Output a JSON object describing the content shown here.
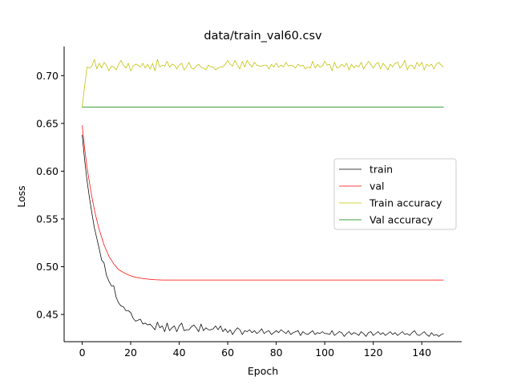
{
  "chart_data": {
    "type": "line",
    "title": "data/train_val60.csv",
    "xlabel": "Epoch",
    "ylabel": "Loss",
    "xlim": [
      -7.45,
      156.45
    ],
    "ylim": [
      0.4215,
      0.7305
    ],
    "xticks": [
      0,
      20,
      40,
      60,
      80,
      100,
      120,
      140
    ],
    "yticks": [
      0.45,
      0.5,
      0.55,
      0.6,
      0.65,
      0.7
    ],
    "xtick_labels": [
      "0",
      "20",
      "40",
      "60",
      "80",
      "100",
      "120",
      "140"
    ],
    "ytick_labels": [
      "0.45",
      "0.50",
      "0.55",
      "0.60",
      "0.65",
      "0.70"
    ],
    "grid": false,
    "spines": [
      "left",
      "bottom"
    ],
    "legend_position": "center-right",
    "x": [
      0,
      1,
      2,
      3,
      4,
      5,
      6,
      7,
      8,
      9,
      10,
      11,
      12,
      13,
      14,
      15,
      16,
      17,
      18,
      19,
      20,
      21,
      22,
      23,
      24,
      25,
      26,
      27,
      28,
      29,
      30,
      31,
      32,
      33,
      34,
      35,
      36,
      37,
      38,
      39,
      40,
      41,
      42,
      43,
      44,
      45,
      46,
      47,
      48,
      49,
      50,
      51,
      52,
      53,
      54,
      55,
      56,
      57,
      58,
      59,
      60,
      61,
      62,
      63,
      64,
      65,
      66,
      67,
      68,
      69,
      70,
      71,
      72,
      73,
      74,
      75,
      76,
      77,
      78,
      79,
      80,
      81,
      82,
      83,
      84,
      85,
      86,
      87,
      88,
      89,
      90,
      91,
      92,
      93,
      94,
      95,
      96,
      97,
      98,
      99,
      100,
      101,
      102,
      103,
      104,
      105,
      106,
      107,
      108,
      109,
      110,
      111,
      112,
      113,
      114,
      115,
      116,
      117,
      118,
      119,
      120,
      121,
      122,
      123,
      124,
      125,
      126,
      127,
      128,
      129,
      130,
      131,
      132,
      133,
      134,
      135,
      136,
      137,
      138,
      139,
      140,
      141,
      142,
      143,
      144,
      145,
      146,
      147,
      148,
      149
    ],
    "series": [
      {
        "name": "train",
        "color": "#000000",
        "values": [
          0.638,
          0.612,
          0.59,
          0.572,
          0.556,
          0.541,
          0.53,
          0.519,
          0.507,
          0.504,
          0.491,
          0.485,
          0.48,
          0.48,
          0.468,
          0.462,
          0.459,
          0.458,
          0.454,
          0.454,
          0.452,
          0.446,
          0.443,
          0.444,
          0.445,
          0.44,
          0.441,
          0.439,
          0.44,
          0.437,
          0.434,
          0.442,
          0.436,
          0.438,
          0.432,
          0.441,
          0.433,
          0.436,
          0.438,
          0.432,
          0.438,
          0.441,
          0.433,
          0.434,
          0.434,
          0.437,
          0.439,
          0.436,
          0.432,
          0.44,
          0.433,
          0.436,
          0.434,
          0.434,
          0.435,
          0.438,
          0.434,
          0.438,
          0.432,
          0.435,
          0.431,
          0.434,
          0.429,
          0.433,
          0.436,
          0.434,
          0.429,
          0.433,
          0.432,
          0.434,
          0.431,
          0.433,
          0.43,
          0.432,
          0.435,
          0.43,
          0.432,
          0.433,
          0.429,
          0.431,
          0.433,
          0.431,
          0.434,
          0.432,
          0.43,
          0.433,
          0.429,
          0.431,
          0.432,
          0.433,
          0.428,
          0.432,
          0.43,
          0.429,
          0.431,
          0.433,
          0.429,
          0.431,
          0.43,
          0.432,
          0.43,
          0.43,
          0.429,
          0.433,
          0.428,
          0.43,
          0.432,
          0.431,
          0.427,
          0.43,
          0.432,
          0.429,
          0.431,
          0.43,
          0.428,
          0.432,
          0.43,
          0.427,
          0.431,
          0.432,
          0.428,
          0.43,
          0.432,
          0.429,
          0.431,
          0.428,
          0.43,
          0.432,
          0.429,
          0.431,
          0.428,
          0.43,
          0.432,
          0.429,
          0.43,
          0.428,
          0.431,
          0.433,
          0.429,
          0.428,
          0.43,
          0.432,
          0.429,
          0.427,
          0.431,
          0.428,
          0.429,
          0.427,
          0.429,
          0.43
        ]
      },
      {
        "name": "val",
        "color": "#ff0000",
        "values": [
          0.648,
          0.624,
          0.604,
          0.588,
          0.573,
          0.56,
          0.549,
          0.539,
          0.531,
          0.523,
          0.517,
          0.511,
          0.507,
          0.503,
          0.5,
          0.497,
          0.4955,
          0.494,
          0.4925,
          0.4915,
          0.4905,
          0.4897,
          0.489,
          0.4885,
          0.488,
          0.4876,
          0.4873,
          0.487,
          0.4868,
          0.4866,
          0.4864,
          0.4863,
          0.4862,
          0.4861,
          0.486,
          0.486,
          0.486,
          0.486,
          0.486,
          0.486,
          0.486,
          0.486,
          0.486,
          0.486,
          0.486,
          0.486,
          0.486,
          0.486,
          0.486,
          0.486,
          0.486,
          0.486,
          0.486,
          0.486,
          0.486,
          0.486,
          0.486,
          0.486,
          0.486,
          0.486,
          0.486,
          0.486,
          0.486,
          0.486,
          0.486,
          0.486,
          0.486,
          0.486,
          0.486,
          0.486,
          0.486,
          0.486,
          0.486,
          0.486,
          0.486,
          0.486,
          0.486,
          0.486,
          0.486,
          0.486,
          0.486,
          0.486,
          0.486,
          0.486,
          0.486,
          0.486,
          0.486,
          0.486,
          0.486,
          0.486,
          0.486,
          0.486,
          0.486,
          0.486,
          0.486,
          0.486,
          0.486,
          0.486,
          0.486,
          0.486,
          0.486,
          0.486,
          0.486,
          0.486,
          0.486,
          0.486,
          0.486,
          0.486,
          0.486,
          0.486,
          0.486,
          0.486,
          0.486,
          0.486,
          0.486,
          0.486,
          0.486,
          0.486,
          0.486,
          0.486,
          0.486,
          0.486,
          0.486,
          0.486,
          0.486,
          0.486,
          0.486,
          0.486,
          0.486,
          0.486,
          0.486,
          0.486,
          0.486,
          0.486,
          0.486,
          0.486,
          0.486,
          0.486,
          0.486,
          0.486,
          0.486,
          0.486,
          0.486,
          0.486,
          0.486,
          0.486,
          0.486,
          0.486,
          0.486,
          0.486
        ]
      },
      {
        "name": "Train accuracy",
        "color": "#bfbf00",
        "values": [
          0.667,
          0.689,
          0.709,
          0.708,
          0.71,
          0.717,
          0.707,
          0.713,
          0.708,
          0.714,
          0.711,
          0.705,
          0.71,
          0.709,
          0.706,
          0.712,
          0.716,
          0.711,
          0.708,
          0.713,
          0.705,
          0.71,
          0.712,
          0.711,
          0.709,
          0.713,
          0.708,
          0.712,
          0.707,
          0.713,
          0.705,
          0.717,
          0.709,
          0.711,
          0.71,
          0.715,
          0.709,
          0.712,
          0.711,
          0.707,
          0.711,
          0.713,
          0.706,
          0.709,
          0.714,
          0.708,
          0.707,
          0.71,
          0.712,
          0.709,
          0.708,
          0.706,
          0.711,
          0.709,
          0.709,
          0.706,
          0.708,
          0.709,
          0.709,
          0.712,
          0.716,
          0.712,
          0.71,
          0.716,
          0.711,
          0.707,
          0.715,
          0.709,
          0.716,
          0.712,
          0.709,
          0.714,
          0.711,
          0.71,
          0.71,
          0.711,
          0.711,
          0.707,
          0.712,
          0.709,
          0.713,
          0.709,
          0.711,
          0.709,
          0.714,
          0.71,
          0.711,
          0.71,
          0.708,
          0.712,
          0.71,
          0.711,
          0.707,
          0.709,
          0.708,
          0.715,
          0.708,
          0.712,
          0.709,
          0.71,
          0.715,
          0.711,
          0.712,
          0.705,
          0.714,
          0.708,
          0.709,
          0.712,
          0.709,
          0.713,
          0.706,
          0.712,
          0.708,
          0.711,
          0.709,
          0.714,
          0.707,
          0.711,
          0.715,
          0.712,
          0.708,
          0.712,
          0.714,
          0.707,
          0.713,
          0.71,
          0.706,
          0.712,
          0.709,
          0.713,
          0.714,
          0.708,
          0.711,
          0.716,
          0.706,
          0.711,
          0.711,
          0.707,
          0.714,
          0.71,
          0.714,
          0.706,
          0.712,
          0.71,
          0.712,
          0.707,
          0.712,
          0.714,
          0.711,
          0.709
        ]
      },
      {
        "name": "Val accuracy",
        "color": "#008000",
        "values": [
          0.667,
          0.667,
          0.667,
          0.667,
          0.667,
          0.667,
          0.667,
          0.667,
          0.667,
          0.667,
          0.667,
          0.667,
          0.667,
          0.667,
          0.667,
          0.667,
          0.667,
          0.667,
          0.667,
          0.667,
          0.667,
          0.667,
          0.667,
          0.667,
          0.667,
          0.667,
          0.667,
          0.667,
          0.667,
          0.667,
          0.667,
          0.667,
          0.667,
          0.667,
          0.667,
          0.667,
          0.667,
          0.667,
          0.667,
          0.667,
          0.667,
          0.667,
          0.667,
          0.667,
          0.667,
          0.667,
          0.667,
          0.667,
          0.667,
          0.667,
          0.667,
          0.667,
          0.667,
          0.667,
          0.667,
          0.667,
          0.667,
          0.667,
          0.667,
          0.667,
          0.667,
          0.667,
          0.667,
          0.667,
          0.667,
          0.667,
          0.667,
          0.667,
          0.667,
          0.667,
          0.667,
          0.667,
          0.667,
          0.667,
          0.667,
          0.667,
          0.667,
          0.667,
          0.667,
          0.667,
          0.667,
          0.667,
          0.667,
          0.667,
          0.667,
          0.667,
          0.667,
          0.667,
          0.667,
          0.667,
          0.667,
          0.667,
          0.667,
          0.667,
          0.667,
          0.667,
          0.667,
          0.667,
          0.667,
          0.667,
          0.667,
          0.667,
          0.667,
          0.667,
          0.667,
          0.667,
          0.667,
          0.667,
          0.667,
          0.667,
          0.667,
          0.667,
          0.667,
          0.667,
          0.667,
          0.667,
          0.667,
          0.667,
          0.667,
          0.667,
          0.667,
          0.667,
          0.667,
          0.667,
          0.667,
          0.667,
          0.667,
          0.667,
          0.667,
          0.667,
          0.667,
          0.667,
          0.667,
          0.667,
          0.667,
          0.667,
          0.667,
          0.667,
          0.667,
          0.667,
          0.667,
          0.667,
          0.667,
          0.667,
          0.667,
          0.667,
          0.667,
          0.667,
          0.667,
          0.667
        ]
      }
    ]
  }
}
